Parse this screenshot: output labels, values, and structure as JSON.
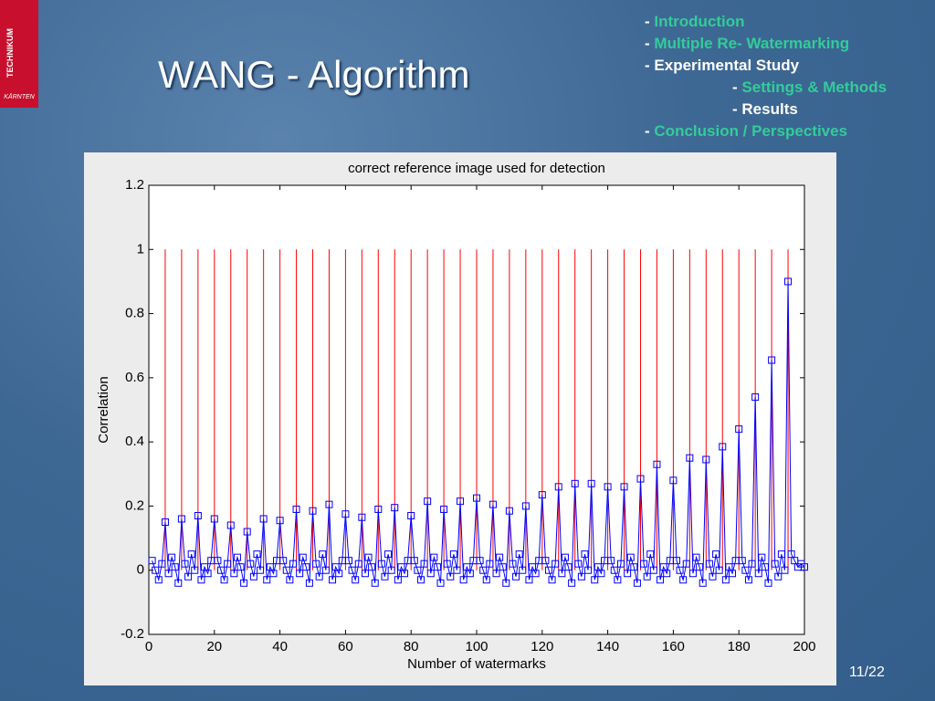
{
  "logo": {
    "name": "TECHNIKUM",
    "region": "KÄRNTEN"
  },
  "title": "WANG - Algorithm",
  "nav": [
    {
      "marker": "-",
      "label": "Introduction",
      "active": false,
      "indent": false
    },
    {
      "marker": "-",
      "label": "Multiple Re- Watermarking",
      "active": false,
      "indent": false
    },
    {
      "marker": "-",
      "label": "Experimental Study",
      "active": true,
      "indent": false
    },
    {
      "marker": "-",
      "label": "Settings & Methods",
      "active": false,
      "indent": true
    },
    {
      "marker": "-",
      "label": "Results",
      "active": true,
      "indent": true
    },
    {
      "marker": "-",
      "label": "Conclusion / Perspectives",
      "active": false,
      "indent": false
    }
  ],
  "page_number": "11/22",
  "chart_data": {
    "type": "line",
    "title": "correct reference image used for detection",
    "xlabel": "Number of watermarks",
    "ylabel": "Correlation",
    "xlim": [
      0,
      200
    ],
    "xticks": [
      0,
      20,
      40,
      60,
      80,
      100,
      120,
      140,
      160,
      180,
      200
    ],
    "ylim": [
      -0.2,
      1.2
    ],
    "yticks": [
      -0.2,
      0,
      0.2,
      0.4,
      0.6,
      0.8,
      1,
      1.2
    ],
    "series": [
      {
        "style": "stem",
        "color": "#ff0000",
        "x": [
          5,
          10,
          15,
          20,
          25,
          30,
          35,
          40,
          45,
          50,
          55,
          60,
          65,
          70,
          75,
          80,
          85,
          90,
          95,
          100,
          105,
          110,
          115,
          120,
          125,
          130,
          135,
          140,
          145,
          150,
          155,
          160,
          165,
          170,
          175,
          180,
          185,
          190,
          195
        ],
        "values": [
          1,
          1,
          1,
          1,
          1,
          1,
          1,
          1,
          1,
          1,
          1,
          1,
          1,
          1,
          1,
          1,
          1,
          1,
          1,
          1,
          1,
          1,
          1,
          1,
          1,
          1,
          1,
          1,
          1,
          1,
          1,
          1,
          1,
          1,
          1,
          1,
          1,
          1,
          1
        ]
      },
      {
        "style": "line",
        "marker": "square",
        "color": "#0000ff",
        "x": [
          1,
          2,
          3,
          4,
          5,
          6,
          7,
          8,
          9,
          10,
          11,
          12,
          13,
          14,
          15,
          16,
          17,
          18,
          19,
          20,
          21,
          22,
          23,
          24,
          25,
          26,
          27,
          28,
          29,
          30,
          31,
          32,
          33,
          34,
          35,
          36,
          37,
          38,
          39,
          40,
          41,
          42,
          43,
          44,
          45,
          46,
          47,
          48,
          49,
          50,
          51,
          52,
          53,
          54,
          55,
          56,
          57,
          58,
          59,
          60,
          61,
          62,
          63,
          64,
          65,
          66,
          67,
          68,
          69,
          70,
          71,
          72,
          73,
          74,
          75,
          76,
          77,
          78,
          79,
          80,
          81,
          82,
          83,
          84,
          85,
          86,
          87,
          88,
          89,
          90,
          91,
          92,
          93,
          94,
          95,
          96,
          97,
          98,
          99,
          100,
          101,
          102,
          103,
          104,
          105,
          106,
          107,
          108,
          109,
          110,
          111,
          112,
          113,
          114,
          115,
          116,
          117,
          118,
          119,
          120,
          121,
          122,
          123,
          124,
          125,
          126,
          127,
          128,
          129,
          130,
          131,
          132,
          133,
          134,
          135,
          136,
          137,
          138,
          139,
          140,
          141,
          142,
          143,
          144,
          145,
          146,
          147,
          148,
          149,
          150,
          151,
          152,
          153,
          154,
          155,
          156,
          157,
          158,
          159,
          160,
          161,
          162,
          163,
          164,
          165,
          166,
          167,
          168,
          169,
          170,
          171,
          172,
          173,
          174,
          175,
          176,
          177,
          178,
          179,
          180,
          181,
          182,
          183,
          184,
          185,
          186,
          187,
          188,
          189,
          190,
          191,
          192,
          193,
          194,
          195,
          196,
          197,
          198,
          199,
          200
        ],
        "values": [
          0.03,
          0,
          -0.03,
          0.02,
          0.15,
          -0.01,
          0.04,
          0.01,
          -0.04,
          0.16,
          0.02,
          -0.02,
          0.05,
          0,
          0.17,
          -0.03,
          0.01,
          -0.01,
          0.03,
          0.16,
          0.03,
          0,
          -0.03,
          0.02,
          0.14,
          -0.01,
          0.04,
          0.01,
          -0.04,
          0.12,
          0.02,
          -0.02,
          0.05,
          0,
          0.16,
          -0.03,
          0.01,
          -0.01,
          0.03,
          0.155,
          0.03,
          0,
          -0.03,
          0.02,
          0.19,
          -0.01,
          0.04,
          0.01,
          -0.04,
          0.185,
          0.02,
          -0.02,
          0.05,
          0,
          0.205,
          -0.03,
          0.01,
          -0.01,
          0.03,
          0.175,
          0.03,
          0,
          -0.03,
          0.02,
          0.165,
          -0.01,
          0.04,
          0.01,
          -0.04,
          0.19,
          0.02,
          -0.02,
          0.05,
          0,
          0.195,
          -0.03,
          0.01,
          -0.01,
          0.03,
          0.17,
          0.03,
          0,
          -0.03,
          0.02,
          0.215,
          -0.01,
          0.04,
          0.01,
          -0.04,
          0.19,
          0.02,
          -0.02,
          0.05,
          0,
          0.215,
          -0.03,
          0.01,
          -0.01,
          0.03,
          0.225,
          0.03,
          0,
          -0.03,
          0.02,
          0.205,
          -0.01,
          0.04,
          0.01,
          -0.04,
          0.185,
          0.02,
          -0.02,
          0.05,
          0,
          0.2,
          -0.03,
          0.01,
          -0.01,
          0.03,
          0.235,
          0.03,
          0,
          -0.03,
          0.02,
          0.26,
          -0.01,
          0.04,
          0.01,
          -0.04,
          0.27,
          0.02,
          -0.02,
          0.05,
          0,
          0.27,
          -0.03,
          0.01,
          -0.01,
          0.03,
          0.26,
          0.03,
          0,
          -0.03,
          0.02,
          0.26,
          -0.01,
          0.04,
          0.01,
          -0.04,
          0.285,
          0.02,
          -0.02,
          0.05,
          0,
          0.33,
          -0.03,
          0.01,
          -0.01,
          0.03,
          0.28,
          0.03,
          0,
          -0.03,
          0.02,
          0.35,
          -0.01,
          0.04,
          0.01,
          -0.04,
          0.345,
          0.02,
          -0.02,
          0.05,
          0,
          0.385,
          -0.03,
          0.01,
          -0.01,
          0.03,
          0.44,
          0.03,
          0,
          -0.03,
          0.02,
          0.54,
          -0.01,
          0.04,
          0.01,
          -0.04,
          0.655,
          0.02,
          -0.02,
          0.05,
          0,
          0.9,
          0.05,
          0.03,
          0.01,
          0.02,
          0.01
        ]
      }
    ]
  }
}
